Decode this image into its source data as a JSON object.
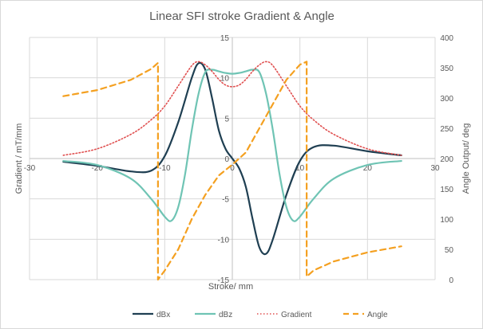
{
  "chart_data": {
    "type": "line",
    "title": "Linear SFI stroke Gradient & Angle",
    "xlabel": "Stroke/ mm",
    "ylabel": "Gradient / mT/mm",
    "y2label": "Angle Output/ deg",
    "xlim": [
      -30,
      30
    ],
    "ylim": [
      -15,
      15
    ],
    "y2lim": [
      0,
      400
    ],
    "x_ticks": [
      -30,
      -20,
      -10,
      0,
      10,
      20,
      30
    ],
    "y_ticks": [
      -15,
      -10,
      -5,
      0,
      5,
      10,
      15
    ],
    "y2_ticks": [
      0,
      50,
      100,
      150,
      200,
      250,
      300,
      350,
      400
    ],
    "x_tick_labels": [
      "-30",
      "-20",
      "-10",
      "0",
      "10",
      "20",
      "30"
    ],
    "y_tick_labels": [
      "-15",
      "-10",
      "-5",
      "0",
      "5",
      "10",
      "15"
    ],
    "y2_tick_labels": [
      "0",
      "50",
      "100",
      "150",
      "200",
      "250",
      "300",
      "350",
      "400"
    ],
    "grid": true,
    "legend_position": "bottom",
    "series": [
      {
        "name": "dBx",
        "axis": "left",
        "color": "#1f3f52",
        "style": "solid",
        "x": [
          -25,
          -20,
          -15,
          -12,
          -10,
          -8,
          -6,
          -5,
          -4,
          -3,
          -2,
          -1,
          0,
          1,
          2,
          3,
          4,
          5,
          6,
          8,
          10,
          12,
          15,
          20,
          25
        ],
        "y": [
          -0.4,
          -0.9,
          -1.6,
          -1.5,
          0.3,
          4.5,
          10.0,
          11.8,
          11.0,
          7.5,
          3.5,
          1.2,
          0.0,
          -1.2,
          -3.5,
          -7.5,
          -11.0,
          -11.8,
          -10.0,
          -4.5,
          -0.3,
          1.4,
          1.6,
          0.9,
          0.4
        ]
      },
      {
        "name": "dBz",
        "axis": "left",
        "color": "#6fc4b4",
        "style": "solid",
        "x": [
          -25,
          -20,
          -15,
          -12,
          -10,
          -9,
          -8,
          -7,
          -6,
          -5,
          -4,
          -3,
          -2,
          -1,
          0,
          1,
          2,
          3,
          4,
          5,
          6,
          7,
          8,
          9,
          10,
          12,
          15,
          20,
          25
        ],
        "y": [
          -0.3,
          -0.8,
          -2.5,
          -5.0,
          -7.2,
          -7.7,
          -6.0,
          -2.0,
          3.5,
          8.0,
          10.7,
          11.0,
          10.8,
          10.6,
          10.5,
          10.6,
          10.8,
          11.0,
          10.7,
          8.0,
          3.5,
          -2.0,
          -6.0,
          -7.7,
          -7.2,
          -5.0,
          -2.5,
          -0.8,
          -0.3
        ]
      },
      {
        "name": "Gradient",
        "axis": "left",
        "color": "#e05050",
        "style": "dotted",
        "x": [
          -25,
          -20,
          -15,
          -12,
          -10,
          -8,
          -6,
          -5,
          -4,
          -3,
          -2,
          -1,
          0,
          1,
          2,
          3,
          4,
          5,
          6,
          8,
          10,
          12,
          15,
          20,
          25
        ],
        "y": [
          0.4,
          1.2,
          3.0,
          4.8,
          6.5,
          9.0,
          11.5,
          12.0,
          11.6,
          10.8,
          9.8,
          9.1,
          8.9,
          9.1,
          9.8,
          10.8,
          11.6,
          12.0,
          11.5,
          9.0,
          6.5,
          4.8,
          3.0,
          1.2,
          0.4
        ]
      },
      {
        "name": "Angle",
        "axis": "right",
        "color": "#f4a020",
        "style": "dashed",
        "x": [
          -25,
          -20,
          -15,
          -12,
          -11,
          -11,
          -10,
          -8,
          -6,
          -4,
          -2,
          0,
          2,
          4,
          6,
          8,
          10,
          11,
          11,
          12,
          15,
          20,
          25
        ],
        "y": [
          303,
          313,
          330,
          348,
          358,
          0,
          15,
          50,
          100,
          140,
          172,
          190,
          210,
          250,
          290,
          330,
          355,
          360,
          5,
          15,
          30,
          45,
          55
        ]
      }
    ]
  }
}
